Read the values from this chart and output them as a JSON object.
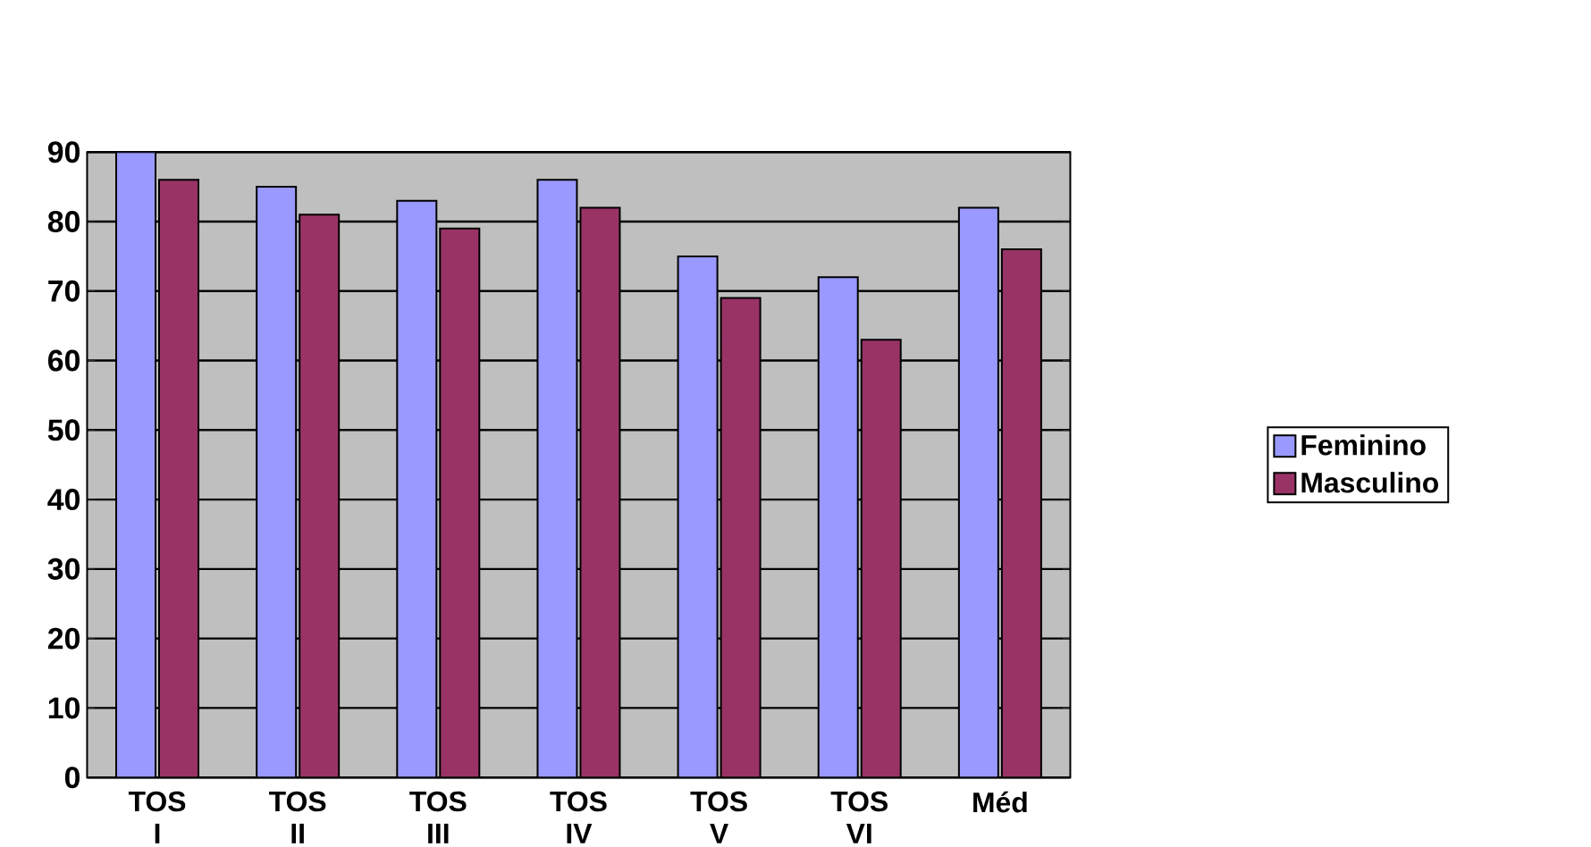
{
  "chart_data": {
    "type": "bar",
    "categories": [
      "TOS I",
      "TOS II",
      "TOS III",
      "TOS IV",
      "TOS V",
      "TOS VI",
      "Méd"
    ],
    "series": [
      {
        "name": "Feminino",
        "color": "#9999ff",
        "values": [
          90,
          85,
          83,
          86,
          75,
          72,
          82
        ]
      },
      {
        "name": "Masculino",
        "color": "#993366",
        "values": [
          86,
          81,
          79,
          82,
          69,
          63,
          76
        ]
      }
    ],
    "ylim": [
      0,
      90
    ],
    "yticks": [
      0,
      10,
      20,
      30,
      40,
      50,
      60,
      70,
      80,
      90
    ],
    "grid": "y",
    "legend": "right"
  }
}
